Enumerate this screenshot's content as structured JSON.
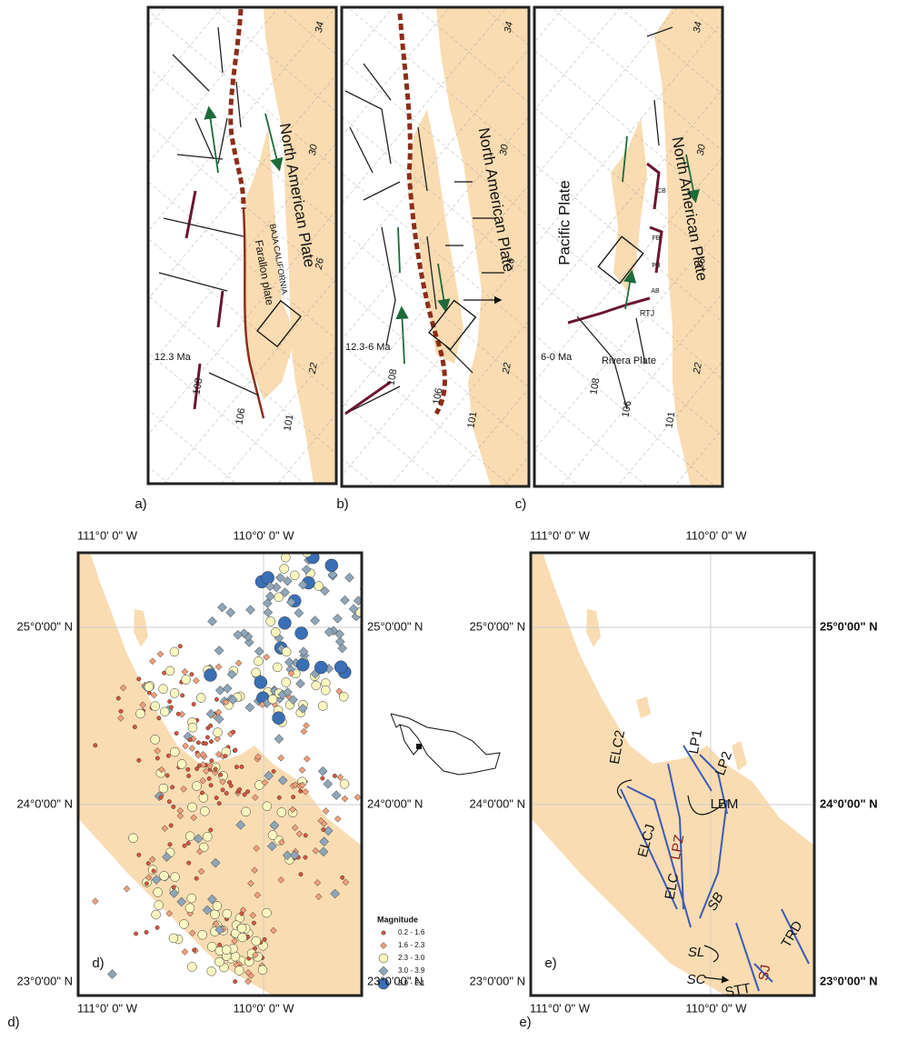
{
  "panels": {
    "a": {
      "caption": "a)",
      "plate_na": "North American Plate",
      "baja": "BAJA CALIFORNIA",
      "farallon": "Farallon plate",
      "age": "12.3 Ma",
      "lat": [
        "34",
        "30",
        "26",
        "22"
      ],
      "lon": [
        "108",
        "106",
        "101"
      ]
    },
    "b": {
      "caption": "b)",
      "plate_na": "North American Plate",
      "age": "12.3-6 Ma",
      "lat": [
        "34",
        "30",
        "26",
        "22"
      ],
      "lon": [
        "108",
        "106",
        "101"
      ]
    },
    "c": {
      "caption": "c)",
      "plate_na": "North American Plate",
      "pacific": "Pacific Plate",
      "rivera": "Rivera Plate",
      "age": "6-0 Ma",
      "lat": [
        "34",
        "30",
        "26",
        "22"
      ],
      "lon": [
        "108",
        "106",
        "101"
      ],
      "basins": [
        "CB",
        "FB",
        "PB",
        "AB",
        "RTJ"
      ]
    },
    "d": {
      "caption": "d)",
      "inset": "d)",
      "lon": [
        "111°0' 0\" W",
        "110°0' 0\" W"
      ],
      "lat": [
        "25°0'00\" N",
        "24°0'00\" N",
        "23°0'00\" N"
      ],
      "legend": {
        "title": "Magnitude",
        "items": [
          "0.2 - 1.6",
          "1.6 - 2.3",
          "2.3 - 3.0",
          "3.0 - 3.9",
          "3.9 - 6.1"
        ]
      }
    },
    "e": {
      "caption": "e)",
      "inset": "e)",
      "lon": [
        "111°0' 0\" W",
        "110°0' 0\" W"
      ],
      "lat": [
        "25°0'00\" N",
        "24°0'00\" N",
        "23°0'00\" N"
      ],
      "faults": [
        "ELC2",
        "LP1",
        "LP2",
        "LBM",
        "ELCJ",
        "LPZ",
        "ELC",
        "SB",
        "SL",
        "SC",
        "STT",
        "SJ",
        "TRD"
      ]
    }
  }
}
